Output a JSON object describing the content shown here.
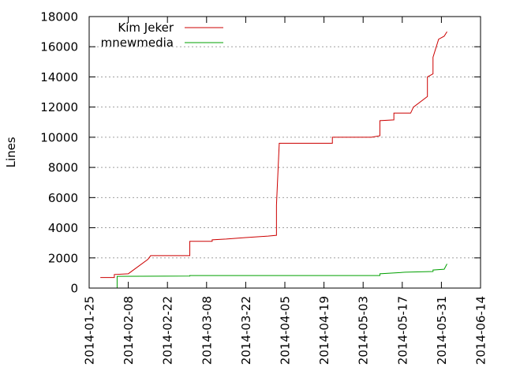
{
  "chart_data": {
    "type": "line",
    "title": "",
    "xlabel": "",
    "ylabel": "Lines",
    "x_axis_type": "date",
    "xlim": [
      "2014-01-25",
      "2014-06-14"
    ],
    "ylim": [
      0,
      18000
    ],
    "x_ticks": [
      "2014-01-25",
      "2014-02-08",
      "2014-02-22",
      "2014-03-08",
      "2014-03-22",
      "2014-04-05",
      "2014-04-19",
      "2014-05-03",
      "2014-05-17",
      "2014-05-31",
      "2014-06-14"
    ],
    "y_ticks": [
      0,
      2000,
      4000,
      6000,
      8000,
      10000,
      12000,
      14000,
      16000,
      18000
    ],
    "grid": true,
    "legend_placement": "top-left",
    "series": [
      {
        "name": "Kim Jeker",
        "color": "#cc0000",
        "line_style": "step",
        "points": [
          [
            "2014-01-29",
            700
          ],
          [
            "2014-02-03",
            700
          ],
          [
            "2014-02-03",
            900
          ],
          [
            "2014-02-08",
            950
          ],
          [
            "2014-02-15",
            1900
          ],
          [
            "2014-02-16",
            2150
          ],
          [
            "2014-03-02",
            2150
          ],
          [
            "2014-03-02",
            3100
          ],
          [
            "2014-03-10",
            3100
          ],
          [
            "2014-03-10",
            3200
          ],
          [
            "2014-03-15",
            3250
          ],
          [
            "2014-03-22",
            3350
          ],
          [
            "2014-03-30",
            3450
          ],
          [
            "2014-04-02",
            3500
          ],
          [
            "2014-04-02",
            5500
          ],
          [
            "2014-04-03",
            9600
          ],
          [
            "2014-04-22",
            9600
          ],
          [
            "2014-04-22",
            10000
          ],
          [
            "2014-05-06",
            10000
          ],
          [
            "2014-05-09",
            10100
          ],
          [
            "2014-05-09",
            11100
          ],
          [
            "2014-05-14",
            11150
          ],
          [
            "2014-05-14",
            11600
          ],
          [
            "2014-05-20",
            11600
          ],
          [
            "2014-05-21",
            12000
          ],
          [
            "2014-05-26",
            12700
          ],
          [
            "2014-05-26",
            14000
          ],
          [
            "2014-05-28",
            14200
          ],
          [
            "2014-05-28",
            15300
          ],
          [
            "2014-05-30",
            16500
          ],
          [
            "2014-06-01",
            16700
          ],
          [
            "2014-06-02",
            17000
          ]
        ]
      },
      {
        "name": "mnewmedia",
        "color": "#00a000",
        "line_style": "step",
        "points": [
          [
            "2014-02-04",
            0
          ],
          [
            "2014-02-04",
            780
          ],
          [
            "2014-03-02",
            800
          ],
          [
            "2014-03-02",
            830
          ],
          [
            "2014-05-09",
            830
          ],
          [
            "2014-05-09",
            950
          ],
          [
            "2014-05-18",
            1050
          ],
          [
            "2014-05-28",
            1100
          ],
          [
            "2014-05-28",
            1200
          ],
          [
            "2014-06-01",
            1250
          ],
          [
            "2014-06-02",
            1600
          ]
        ]
      }
    ]
  }
}
